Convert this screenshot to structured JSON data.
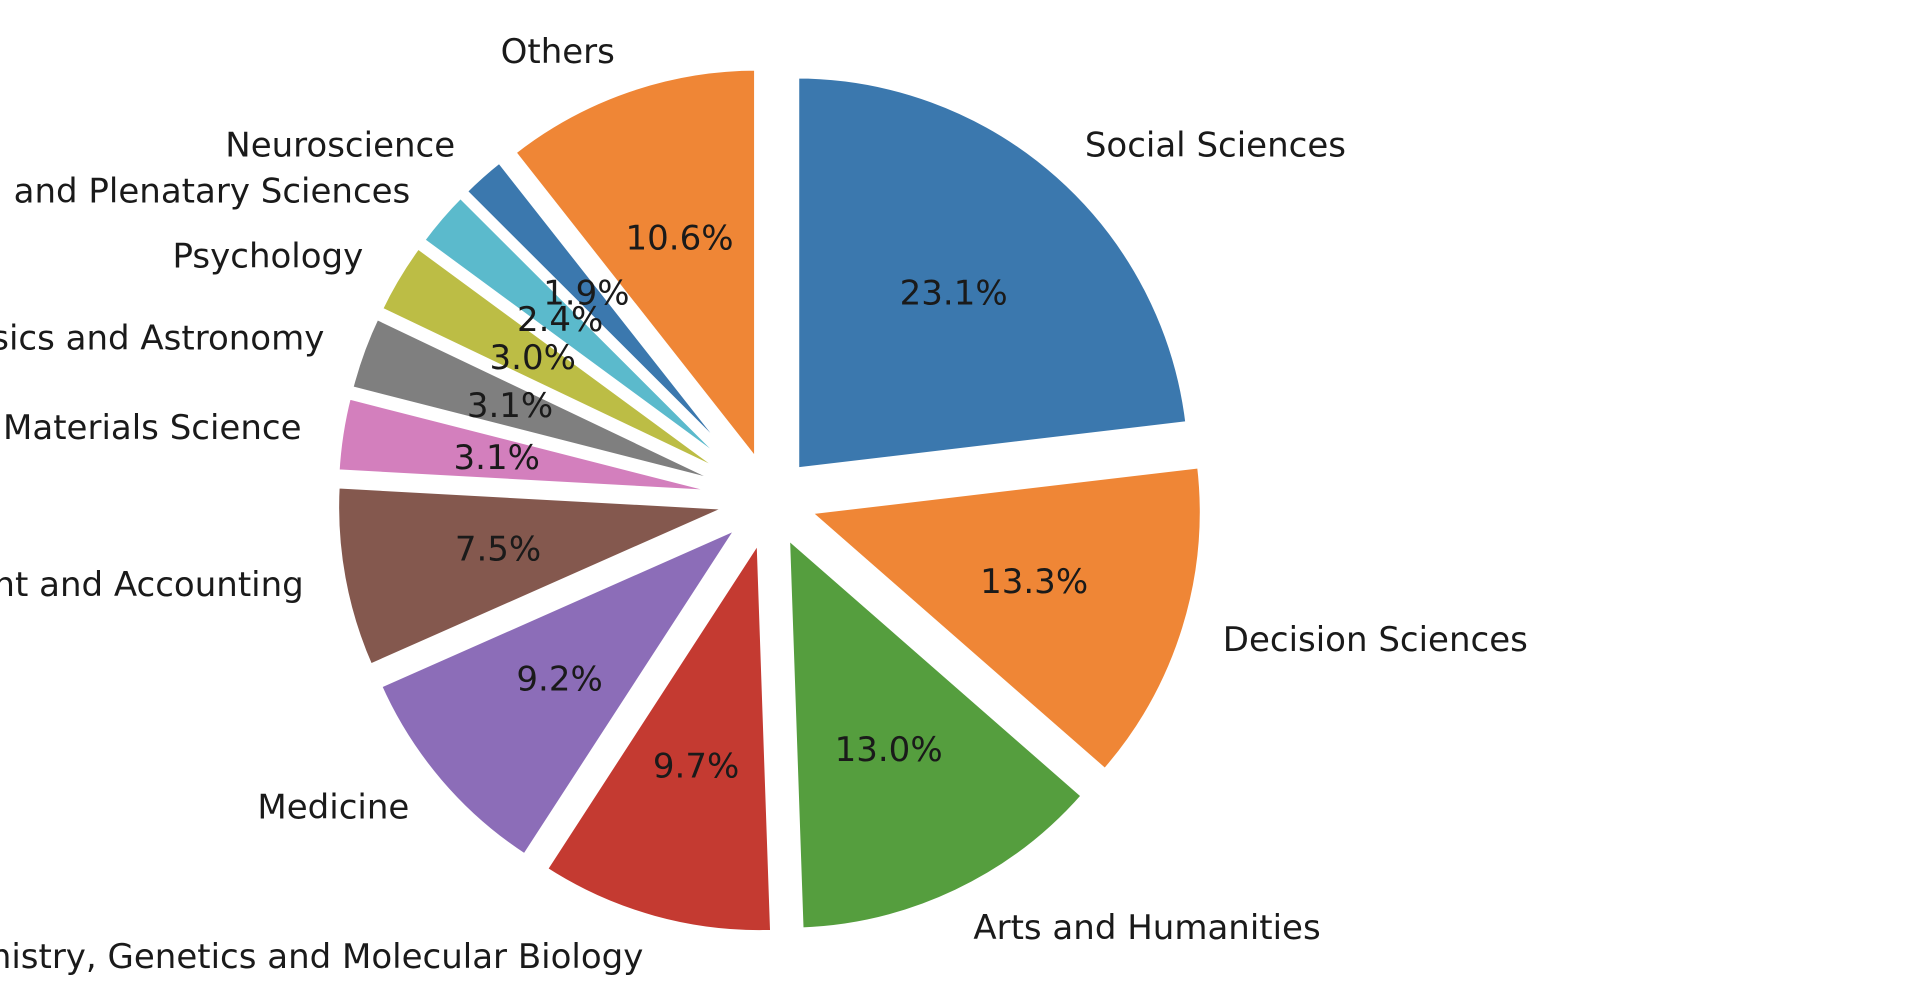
{
  "chart_data": {
    "type": "pie",
    "start_angle_deg": 90,
    "direction": "clockwise",
    "explode": "all",
    "slices": [
      {
        "label": "Social Sciences",
        "value": 23.1,
        "pct_label": "23.1%",
        "color": "#3b78ae"
      },
      {
        "label": "Decision Sciences",
        "value": 13.3,
        "pct_label": "13.3%",
        "color": "#ef8636"
      },
      {
        "label": "Arts and Humanities",
        "value": 13.0,
        "pct_label": "13.0%",
        "color": "#559e3e"
      },
      {
        "label": "Biochemistry, Genetics and Molecular Biology",
        "value": 9.7,
        "pct_label": "9.7%",
        "color": "#c43a31"
      },
      {
        "label": "Medicine",
        "value": 9.2,
        "pct_label": "9.2%",
        "color": "#8c6db8"
      },
      {
        "label": "Business, Management and Accounting",
        "value": 7.5,
        "pct_label": "7.5%",
        "color": "#84584e"
      },
      {
        "label": "Materials Science",
        "value": 3.1,
        "pct_label": "3.1%",
        "color": "#d37fbd"
      },
      {
        "label": "Physics and Astronomy",
        "value": 3.1,
        "pct_label": "3.1%",
        "color": "#7f7f7f"
      },
      {
        "label": "Psychology",
        "value": 3.0,
        "pct_label": "3.0%",
        "color": "#bcbd45"
      },
      {
        "label": "Earth and Plenatary Sciences",
        "value": 2.4,
        "pct_label": "2.4%",
        "color": "#5bbacc"
      },
      {
        "label": "Neuroscience",
        "value": 1.9,
        "pct_label": "1.9%",
        "color": "#3b78ae"
      },
      {
        "label": "Others",
        "value": 10.6,
        "pct_label": "10.6%",
        "color": "#ef8636"
      }
    ]
  }
}
